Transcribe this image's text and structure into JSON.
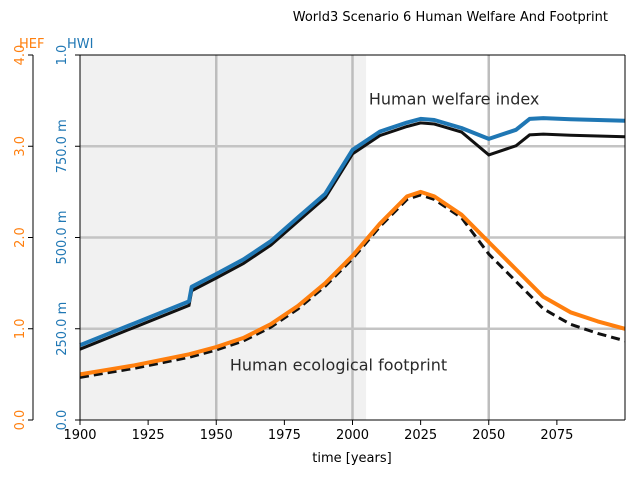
{
  "chart_data": {
    "type": "line",
    "title": "World3 Scenario 6 Human Welfare And Footprint",
    "xlabel": "time [years]",
    "xlim": [
      1900,
      2100
    ],
    "x_ticks": [
      1900,
      1925,
      1950,
      1975,
      2000,
      2025,
      2050,
      2075
    ],
    "x_tick_labels": [
      "1900",
      "1925",
      "1950",
      "1975",
      "2000",
      "2025",
      "2050",
      "2075"
    ],
    "axes": {
      "hef": {
        "label": "HEF",
        "color": "#ff7f0e",
        "ylim": [
          0,
          4
        ],
        "ticks": [
          0,
          1,
          2,
          3,
          4
        ],
        "tick_labels": [
          "0.0",
          "1.0",
          "2.0",
          "3.0",
          "4.0"
        ]
      },
      "hwi": {
        "label": "HWI",
        "color": "#1f77b4",
        "ylim": [
          0,
          1
        ],
        "ticks": [
          0,
          0.25,
          0.5,
          0.75,
          1
        ],
        "tick_labels": [
          "0.0",
          "250.0 m",
          "500.0 m",
          "750.0 m",
          "1.0"
        ]
      }
    },
    "grid": true,
    "annotations": [
      {
        "text": "Human welfare index",
        "x": 2006,
        "y_hwi": 0.865
      },
      {
        "text": "Human ecological footprint",
        "x": 1955,
        "y_hwi": 0.135
      }
    ],
    "series": [
      {
        "axis": "hwi",
        "color": "#1f77b4",
        "x": [
          1900,
          1910,
          1920,
          1930,
          1940,
          1941,
          1950,
          1960,
          1970,
          1980,
          1990,
          2000,
          2010,
          2020,
          2025,
          2030,
          2040,
          2050,
          2060,
          2065,
          2070,
          2080,
          2090,
          2100
        ],
        "values": [
          0.205,
          0.235,
          0.265,
          0.295,
          0.325,
          0.365,
          0.4,
          0.44,
          0.49,
          0.555,
          0.62,
          0.74,
          0.79,
          0.815,
          0.825,
          0.822,
          0.8,
          0.77,
          0.795,
          0.825,
          0.827,
          0.824,
          0.822,
          0.82
        ]
      },
      {
        "axis": "hef",
        "color": "#ff7f0e",
        "x": [
          1900,
          1910,
          1920,
          1930,
          1940,
          1950,
          1960,
          1970,
          1980,
          1990,
          2000,
          2010,
          2020,
          2025,
          2030,
          2040,
          2050,
          2060,
          2070,
          2080,
          2090,
          2100
        ],
        "values": [
          0.5,
          0.55,
          0.6,
          0.66,
          0.72,
          0.8,
          0.9,
          1.05,
          1.25,
          1.5,
          1.8,
          2.15,
          2.45,
          2.5,
          2.45,
          2.25,
          1.95,
          1.65,
          1.35,
          1.18,
          1.08,
          1.0
        ]
      }
    ]
  }
}
